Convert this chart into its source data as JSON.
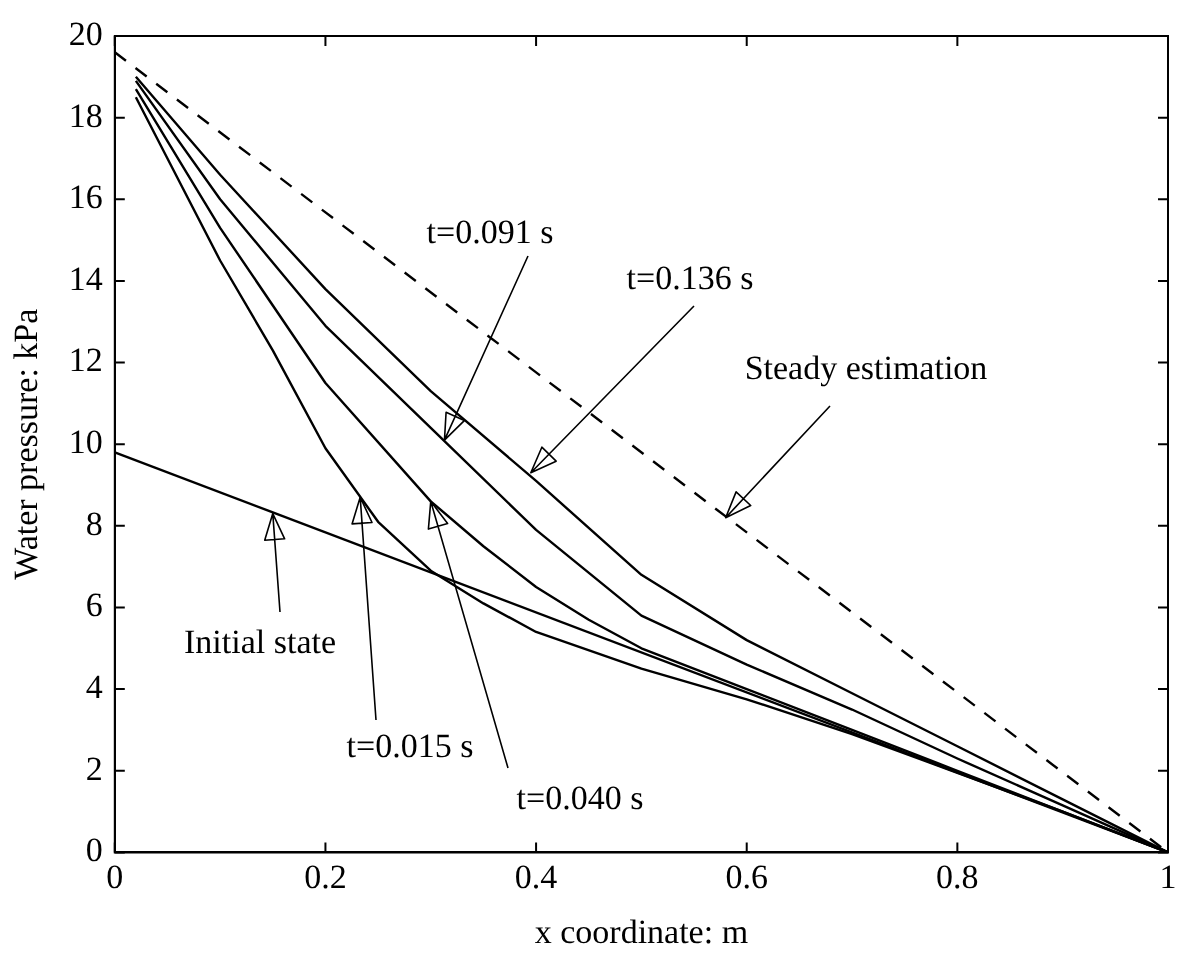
{
  "chart_data": {
    "type": "line",
    "xlabel": "x coordinate: m",
    "ylabel": "Water pressure: kPa",
    "xlim": [
      0,
      1
    ],
    "ylim": [
      0,
      20
    ],
    "xticks": [
      0,
      0.2,
      0.4,
      0.6,
      0.8,
      1
    ],
    "yticks": [
      0,
      2,
      4,
      6,
      8,
      10,
      12,
      14,
      16,
      18,
      20
    ],
    "grid": false,
    "legend": false,
    "marker": "none",
    "annotations": [
      {
        "text": "Initial state",
        "x": 0.15,
        "y": 8.3
      },
      {
        "text": "t=0.015 s",
        "x": 0.233,
        "y": 8.7
      },
      {
        "text": "t=0.040 s",
        "x": 0.3,
        "y": 8.6
      },
      {
        "text": "t=0.091 s",
        "x": 0.313,
        "y": 10.1
      },
      {
        "text": "t=0.136 s",
        "x": 0.395,
        "y": 9.3
      },
      {
        "text": "Steady estimation",
        "x": 0.58,
        "y": 8.2
      }
    ],
    "series": [
      {
        "color": "#000000",
        "line_style": "solid",
        "x": [
          0,
          1
        ],
        "values": [
          9.8,
          0
        ]
      },
      {
        "color": "#000000",
        "line_style": "solid",
        "x": [
          0.02,
          0.05,
          0.1,
          0.15,
          0.2,
          0.25,
          0.3,
          0.35,
          0.4,
          0.5,
          0.6,
          0.7,
          0.8,
          0.9,
          1
        ],
        "values": [
          18.5,
          17.0,
          14.5,
          12.3,
          9.9,
          8.1,
          6.9,
          6.1,
          5.4,
          4.5,
          3.75,
          2.9,
          1.95,
          1.0,
          0
        ]
      },
      {
        "color": "#000000",
        "line_style": "solid",
        "x": [
          0.02,
          0.1,
          0.2,
          0.3,
          0.35,
          0.4,
          0.45,
          0.5,
          0.6,
          0.7,
          0.8,
          0.9,
          1
        ],
        "values": [
          18.7,
          15.3,
          11.5,
          8.6,
          7.5,
          6.5,
          5.7,
          5.0,
          4.0,
          3.0,
          2.0,
          1.0,
          0
        ]
      },
      {
        "color": "#000000",
        "line_style": "solid",
        "x": [
          0.02,
          0.1,
          0.2,
          0.3,
          0.4,
          0.5,
          0.6,
          0.7,
          0.8,
          0.9,
          1
        ],
        "values": [
          18.9,
          16.0,
          12.9,
          10.4,
          7.9,
          5.8,
          4.6,
          3.5,
          2.3,
          1.15,
          0
        ]
      },
      {
        "color": "#000000",
        "line_style": "solid",
        "x": [
          0.02,
          0.1,
          0.2,
          0.3,
          0.4,
          0.5,
          0.6,
          0.7,
          0.8,
          0.9,
          1
        ],
        "values": [
          19.0,
          16.6,
          13.8,
          11.3,
          9.1,
          6.8,
          5.2,
          3.9,
          2.6,
          1.3,
          0
        ]
      },
      {
        "color": "#000000",
        "line_style": "dashed",
        "x": [
          0,
          1
        ],
        "values": [
          19.6,
          0
        ]
      }
    ]
  }
}
